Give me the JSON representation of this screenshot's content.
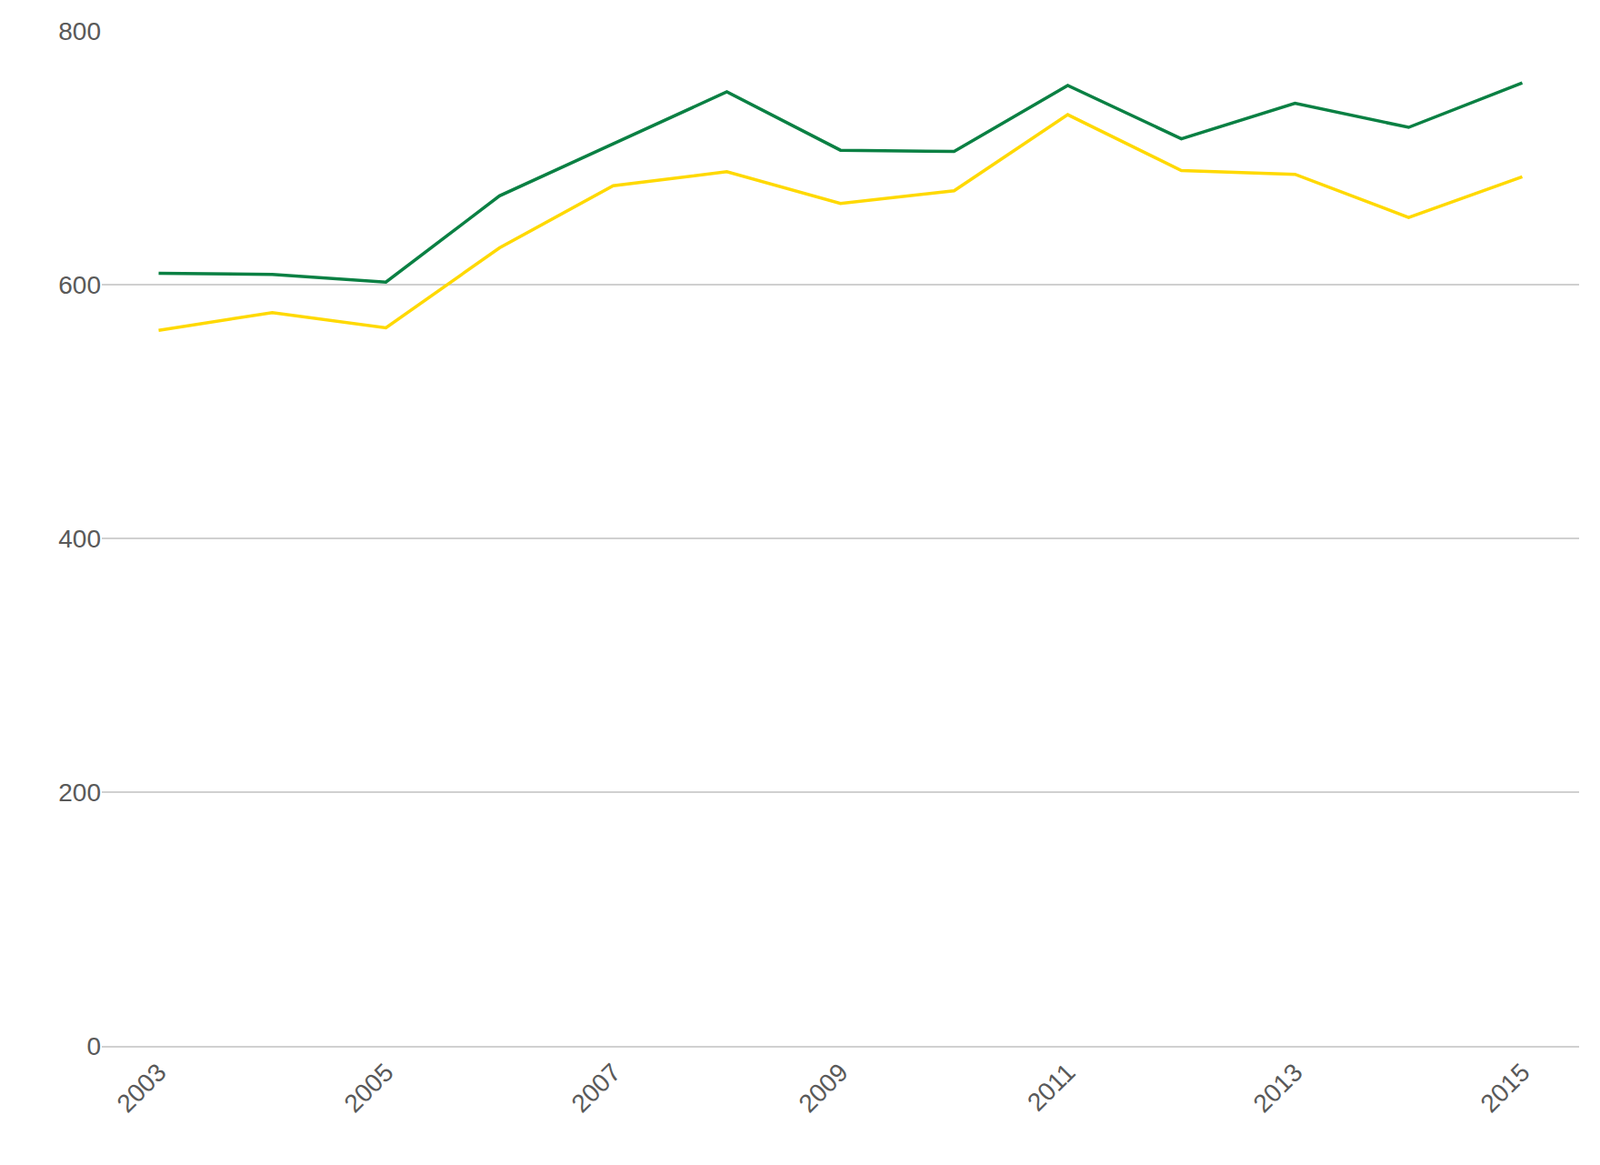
{
  "chart_data": {
    "type": "line",
    "x": [
      2003,
      2004,
      2005,
      2006,
      2007,
      2008,
      2009,
      2010,
      2011,
      2012,
      2013,
      2014,
      2015
    ],
    "series": [
      {
        "color": "#0a8043",
        "values": [
          609,
          608,
          602,
          670,
          711,
          752,
          706,
          705,
          757,
          715,
          743,
          724,
          759
        ]
      },
      {
        "color": "#ffd900",
        "values": [
          564,
          578,
          566,
          629,
          678,
          689,
          664,
          674,
          734,
          690,
          687,
          653,
          685
        ]
      }
    ],
    "xlim": [
      2002.5,
      2015.5
    ],
    "xticks": [
      2003,
      2005,
      2007,
      2009,
      2011,
      2013,
      2015
    ],
    "ylim": [
      0,
      800
    ],
    "yticks": [
      0,
      200,
      400,
      600,
      800
    ],
    "grid": true
  }
}
